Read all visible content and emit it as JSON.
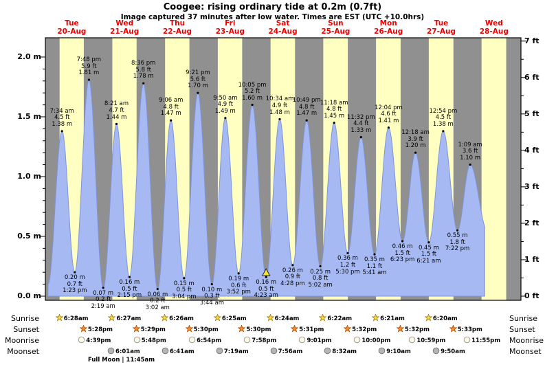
{
  "chart_data": {
    "type": "area",
    "title": "Coogee: rising  ordinary tide at 0.2m (0.7ft)",
    "subtitle": "Image captured 37 minutes after low water. Times are EST (UTC +10.0hrs)",
    "x_axis": {
      "days": [
        {
          "dow": "Tue",
          "date": "20-Aug"
        },
        {
          "dow": "Wed",
          "date": "21-Aug"
        },
        {
          "dow": "Thu",
          "date": "22-Aug"
        },
        {
          "dow": "Fri",
          "date": "23-Aug"
        },
        {
          "dow": "Sat",
          "date": "24-Aug"
        },
        {
          "dow": "Sun",
          "date": "25-Aug"
        },
        {
          "dow": "Mon",
          "date": "26-Aug"
        },
        {
          "dow": "Tue",
          "date": "27-Aug"
        },
        {
          "dow": "Wed",
          "date": "28-Aug"
        }
      ]
    },
    "y_axis_left": {
      "unit": "m",
      "ticks": [
        "0.0 m",
        "0.5 m",
        "1.0 m",
        "1.5 m",
        "2.0 m"
      ],
      "range_m": [
        0.0,
        2.17
      ]
    },
    "y_axis_right": {
      "unit": "ft",
      "ticks": [
        "0 ft",
        "1 ft",
        "2 ft",
        "3 ft",
        "4 ft",
        "5 ft",
        "6 ft",
        "7 ft"
      ],
      "range_ft": [
        0,
        7.1
      ]
    },
    "tides": [
      {
        "day": 0,
        "type": "high",
        "time": "7:34 am",
        "height_ft": 4.5,
        "height_m": 1.38
      },
      {
        "day": 0,
        "type": "low",
        "time": "1:23 pm",
        "height_ft": 0.7,
        "height_m": 0.2
      },
      {
        "day": 0,
        "type": "high",
        "time": "7:48 pm",
        "height_ft": 5.9,
        "height_m": 1.81
      },
      {
        "day": 1,
        "type": "low",
        "time": "2:19 am",
        "height_ft": 0.2,
        "height_m": 0.07
      },
      {
        "day": 1,
        "type": "high",
        "time": "8:21 am",
        "height_ft": 4.7,
        "height_m": 1.44
      },
      {
        "day": 1,
        "type": "low",
        "time": "2:15 pm",
        "height_ft": 0.5,
        "height_m": 0.16
      },
      {
        "day": 1,
        "type": "high",
        "time": "8:36 pm",
        "height_ft": 5.8,
        "height_m": 1.78
      },
      {
        "day": 2,
        "type": "low",
        "time": "3:02 am",
        "height_ft": 0.2,
        "height_m": 0.06
      },
      {
        "day": 2,
        "type": "high",
        "time": "9:06 am",
        "height_ft": 4.8,
        "height_m": 1.47
      },
      {
        "day": 2,
        "type": "low",
        "time": "3:04 pm",
        "height_ft": 0.5,
        "height_m": 0.15
      },
      {
        "day": 2,
        "type": "high",
        "time": "9:21 pm",
        "height_ft": 5.6,
        "height_m": 1.7
      },
      {
        "day": 3,
        "type": "low",
        "time": "3:44 am",
        "height_ft": 0.3,
        "height_m": 0.1
      },
      {
        "day": 3,
        "type": "high",
        "time": "9:50 am",
        "height_ft": 4.9,
        "height_m": 1.49
      },
      {
        "day": 3,
        "type": "low",
        "time": "3:52 pm",
        "height_ft": 0.6,
        "height_m": 0.19
      },
      {
        "day": 3,
        "type": "high",
        "time": "10:05 pm",
        "height_ft": 5.2,
        "height_m": 1.6
      },
      {
        "day": 4,
        "type": "low",
        "time": "4:23 am",
        "height_ft": 0.5,
        "height_m": 0.16
      },
      {
        "day": 4,
        "type": "high",
        "time": "10:34 am",
        "height_ft": 4.9,
        "height_m": 1.48
      },
      {
        "day": 4,
        "type": "low",
        "time": "4:28 pm",
        "height_ft": 0.9,
        "height_m": 0.26
      },
      {
        "day": 4,
        "type": "high",
        "time": "10:49 pm",
        "height_ft": 4.8,
        "height_m": 1.47
      },
      {
        "day": 5,
        "type": "low",
        "time": "5:02 am",
        "height_ft": 0.8,
        "height_m": 0.25
      },
      {
        "day": 5,
        "type": "high",
        "time": "11:18 am",
        "height_ft": 4.8,
        "height_m": 1.45
      },
      {
        "day": 5,
        "type": "low",
        "time": "5:30 pm",
        "height_ft": 1.2,
        "height_m": 0.36
      },
      {
        "day": 5,
        "type": "high",
        "time": "11:32 pm",
        "height_ft": 4.4,
        "height_m": 1.33
      },
      {
        "day": 6,
        "type": "low",
        "time": "5:41 am",
        "height_ft": 1.1,
        "height_m": 0.35
      },
      {
        "day": 6,
        "type": "high",
        "time": "12:04 pm",
        "height_ft": 4.6,
        "height_m": 1.41
      },
      {
        "day": 6,
        "type": "low",
        "time": "6:23 pm",
        "height_ft": 1.5,
        "height_m": 0.46
      },
      {
        "day": 7,
        "type": "high",
        "time": "12:18 am",
        "height_ft": 3.9,
        "height_m": 1.2
      },
      {
        "day": 7,
        "type": "low",
        "time": "6:21 am",
        "height_ft": 1.5,
        "height_m": 0.45
      },
      {
        "day": 7,
        "type": "high",
        "time": "12:54 pm",
        "height_ft": 4.5,
        "height_m": 1.38
      },
      {
        "day": 7,
        "type": "low",
        "time": "7:22 pm",
        "height_ft": 1.8,
        "height_m": 0.55
      },
      {
        "day": 8,
        "type": "high",
        "time": "1:09 am",
        "height_ft": 3.6,
        "height_m": 1.1
      }
    ],
    "current_position": {
      "tide_index": 15,
      "marker": "yellow-triangle"
    },
    "colors": {
      "night_band": "#909090",
      "day_band": "#ffffc2",
      "tide_fill": "#a6b9f2",
      "tide_stroke": "#7e94dd",
      "day_label": "#ee0000",
      "marker": "#f5e23d",
      "frame": "#000000"
    }
  },
  "astronomy": {
    "rows": [
      {
        "label": "Sunrise",
        "icon": "sunrise-star-icon",
        "shape": "star",
        "icon_fill": "#ffd83d",
        "icon_stroke": "#9a7d14",
        "entries": [
          {
            "day": 0,
            "time": "6:28am"
          },
          {
            "day": 1,
            "time": "6:27am"
          },
          {
            "day": 2,
            "time": "6:26am"
          },
          {
            "day": 3,
            "time": "6:25am"
          },
          {
            "day": 4,
            "time": "6:24am"
          },
          {
            "day": 5,
            "time": "6:22am"
          },
          {
            "day": 6,
            "time": "6:21am"
          },
          {
            "day": 7,
            "time": "6:20am"
          }
        ]
      },
      {
        "label": "Sunset",
        "icon": "sunset-star-icon",
        "shape": "star",
        "icon_fill": "#ff8c28",
        "icon_stroke": "#aa4a00",
        "entries": [
          {
            "day": 0,
            "time": "5:28pm"
          },
          {
            "day": 1,
            "time": "5:29pm"
          },
          {
            "day": 2,
            "time": "5:30pm"
          },
          {
            "day": 3,
            "time": "5:30pm"
          },
          {
            "day": 4,
            "time": "5:31pm"
          },
          {
            "day": 5,
            "time": "5:32pm"
          },
          {
            "day": 6,
            "time": "5:32pm"
          },
          {
            "day": 7,
            "time": "5:33pm"
          }
        ]
      },
      {
        "label": "Moonrise",
        "icon": "moonrise-circle-icon",
        "shape": "circle",
        "icon_fill": "#fffbe6",
        "icon_stroke": "#999999",
        "entries": [
          {
            "day": 0,
            "time": "4:39pm"
          },
          {
            "day": 1,
            "time": "5:48pm"
          },
          {
            "day": 2,
            "time": "6:54pm"
          },
          {
            "day": 3,
            "time": "7:58pm"
          },
          {
            "day": 4,
            "time": "9:01pm"
          },
          {
            "day": 5,
            "time": "10:00pm"
          },
          {
            "day": 6,
            "time": "10:59pm"
          },
          {
            "day": 7,
            "time": "11:55pm"
          }
        ]
      },
      {
        "label": "Moonset",
        "icon": "moonset-circle-icon",
        "shape": "circle",
        "icon_fill": "#b5b5b5",
        "icon_stroke": "#7a7a7a",
        "entries": [
          {
            "day": 1,
            "time": "6:01am"
          },
          {
            "day": 2,
            "time": "6:41am"
          },
          {
            "day": 3,
            "time": "7:19am"
          },
          {
            "day": 4,
            "time": "7:56am"
          },
          {
            "day": 5,
            "time": "8:32am"
          },
          {
            "day": 6,
            "time": "9:10am"
          },
          {
            "day": 7,
            "time": "9:50am"
          }
        ]
      }
    ],
    "full_moon": "Full Moon | 11:45am"
  }
}
